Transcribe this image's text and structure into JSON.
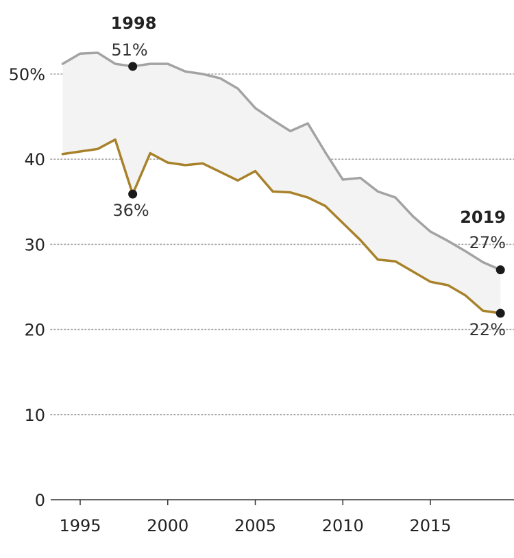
{
  "chart_data": {
    "type": "line",
    "title": "",
    "xlabel": "",
    "ylabel": "",
    "xlim": [
      1993.8,
      2019.5
    ],
    "ylim": [
      0,
      50
    ],
    "y_ticks": [
      {
        "value": 0,
        "label": "0"
      },
      {
        "value": 10,
        "label": "10"
      },
      {
        "value": 20,
        "label": "20"
      },
      {
        "value": 30,
        "label": "30"
      },
      {
        "value": 40,
        "label": "40"
      },
      {
        "value": 50,
        "label": "50%"
      }
    ],
    "x_ticks": [
      {
        "value": 1995,
        "label": "1995"
      },
      {
        "value": 2000,
        "label": "2000"
      },
      {
        "value": 2005,
        "label": "2005"
      },
      {
        "value": 2010,
        "label": "2010"
      },
      {
        "value": 2015,
        "label": "2015"
      }
    ],
    "grid": "horizontal dotted",
    "fill_between_series": true,
    "series": [
      {
        "name": "upper",
        "color": "#a3a3a3",
        "x": [
          1994,
          1995,
          1996,
          1997,
          1998,
          1999,
          2000,
          2001,
          2002,
          2003,
          2004,
          2005,
          2006,
          2007,
          2008,
          2009,
          2010,
          2011,
          2012,
          2013,
          2014,
          2015,
          2016,
          2017,
          2018,
          2019
        ],
        "values": [
          51.2,
          52.4,
          52.5,
          51.2,
          50.9,
          51.2,
          51.2,
          50.3,
          50.0,
          49.5,
          48.3,
          46.0,
          44.6,
          43.3,
          44.2,
          40.8,
          37.6,
          37.8,
          36.2,
          35.5,
          33.3,
          31.5,
          30.4,
          29.2,
          27.9,
          27.0
        ]
      },
      {
        "name": "lower",
        "color": "#a8822a",
        "x": [
          1994,
          1995,
          1996,
          1997,
          1998,
          1999,
          2000,
          2001,
          2002,
          2003,
          2004,
          2005,
          2006,
          2007,
          2008,
          2009,
          2010,
          2011,
          2012,
          2013,
          2014,
          2015,
          2016,
          2017,
          2018,
          2019
        ],
        "values": [
          40.6,
          40.9,
          41.2,
          42.3,
          35.9,
          40.7,
          39.6,
          39.3,
          39.5,
          38.5,
          37.5,
          38.6,
          36.2,
          36.1,
          35.5,
          34.5,
          32.5,
          30.5,
          28.2,
          28.0,
          26.8,
          25.6,
          25.2,
          24.0,
          22.2,
          21.9
        ]
      }
    ],
    "annotations": [
      {
        "year": 1998,
        "value": 51,
        "year_label": "1998",
        "value_label": "51%",
        "series": "upper"
      },
      {
        "year": 1998,
        "value": 36,
        "value_label": "36%",
        "series": "lower"
      },
      {
        "year": 2019,
        "value": 27,
        "year_label": "2019",
        "value_label": "27%",
        "series": "upper"
      },
      {
        "year": 2019,
        "value": 22,
        "value_label": "22%",
        "series": "lower"
      }
    ]
  },
  "style": {
    "band_fill": "#f3f3f3",
    "grid_color": "#a0a0a0",
    "axis_color": "#333333",
    "marker_color": "#1a1a1a"
  }
}
